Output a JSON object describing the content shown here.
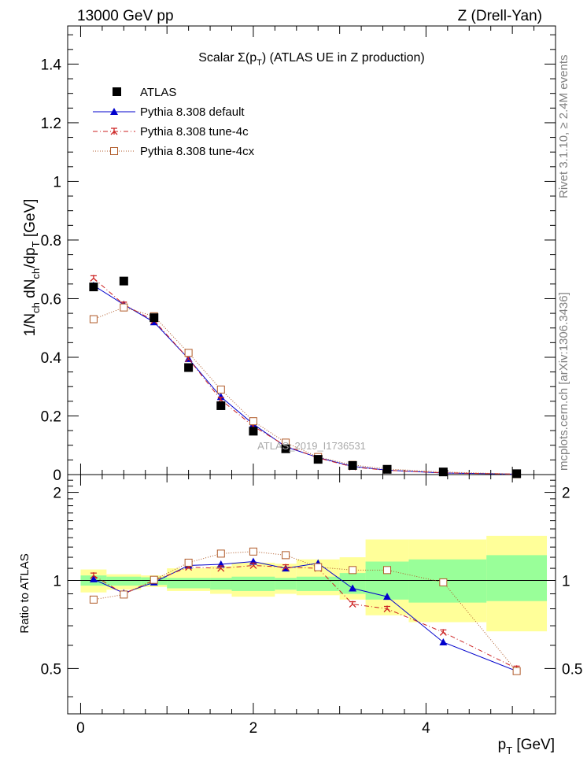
{
  "header": {
    "left": "13000 GeV pp",
    "right": "Z (Drell-Yan)"
  },
  "side_labels": {
    "rivet": "Rivet 3.1.10, ≥ 2.4M events",
    "mcplots": "mcplots.cern.ch [arXiv:1306.3436]"
  },
  "watermark": "ATLAS_2019_I1736531",
  "colors": {
    "atlas": "#000000",
    "default": "#0000cc",
    "tune4c": "#cc2222",
    "tune4cx": "#b05a28",
    "band_inner": "#99ff99",
    "band_outer": "#ffff99"
  },
  "chart_data": [
    {
      "type": "scatter",
      "title": "Scalar Σ(p_T) (ATLAS UE in Z production)",
      "title_parts": [
        "Scalar ",
        "Σ(p",
        "T",
        ") (ATLAS UE in Z production)"
      ],
      "ylabel": "1/N_ch dN_ch/dp_T [GeV]",
      "ylabel_parts": [
        "1/N",
        "ch",
        " dN",
        "ch",
        "/dp",
        "T",
        " [GeV]"
      ],
      "xlim": [
        -0.15,
        5.5
      ],
      "ylim": [
        0,
        1.53
      ],
      "yticks": [
        0,
        0.2,
        0.4,
        0.6,
        0.8,
        1,
        1.2,
        1.4
      ],
      "ytick_labels": [
        "0",
        "0.2",
        "0.4",
        "0.6",
        "0.8",
        "1",
        "1.2",
        "1.4"
      ],
      "x": [
        0.15,
        0.5,
        0.85,
        1.25,
        1.625,
        2.0,
        2.375,
        2.75,
        3.15,
        3.55,
        4.2,
        5.05
      ],
      "series": [
        {
          "name": "ATLAS",
          "values": [
            0.64,
            0.66,
            0.535,
            0.365,
            0.235,
            0.148,
            0.088,
            0.052,
            0.031,
            0.018,
            0.009,
            0.003
          ]
        },
        {
          "name": "Pythia 8.308 default",
          "values": [
            0.645,
            0.58,
            0.52,
            0.395,
            0.265,
            0.172,
            0.095,
            0.058,
            0.028,
            0.015,
            0.0055,
            0.0015
          ]
        },
        {
          "name": "Pythia 8.308 tune-4c",
          "values": [
            0.67,
            0.58,
            0.525,
            0.395,
            0.255,
            0.165,
            0.098,
            0.057,
            0.026,
            0.0145,
            0.006,
            0.0016
          ]
        },
        {
          "name": "Pythia 8.308 tune-4cx",
          "values": [
            0.53,
            0.57,
            0.54,
            0.415,
            0.29,
            0.182,
            0.109,
            0.06,
            0.033,
            0.019,
            0.009,
            0.0015
          ]
        }
      ],
      "legend_position": "top-left"
    },
    {
      "type": "scatter",
      "ylabel": "Ratio to ATLAS",
      "xlabel": "p_T [GeV]",
      "xlabel_parts": [
        "p",
        "T",
        " [GeV]"
      ],
      "xlim": [
        -0.15,
        5.5
      ],
      "ylim": [
        0.35,
        2.3
      ],
      "xticks": [
        0,
        2,
        4
      ],
      "xtick_labels": [
        "0",
        "2",
        "4"
      ],
      "yticks": [
        0.5,
        1,
        2
      ],
      "ytick_labels": [
        "0.5",
        "1",
        "2"
      ],
      "x": [
        0.15,
        0.5,
        0.85,
        1.25,
        1.625,
        2.0,
        2.375,
        2.75,
        3.15,
        3.55,
        4.2,
        5.05
      ],
      "bins": [
        [
          0.0,
          0.3
        ],
        [
          0.3,
          0.7
        ],
        [
          0.7,
          1.0
        ],
        [
          1.0,
          1.5
        ],
        [
          1.5,
          1.75
        ],
        [
          1.75,
          2.25
        ],
        [
          2.25,
          2.5
        ],
        [
          2.5,
          3.0
        ],
        [
          3.0,
          3.3
        ],
        [
          3.3,
          3.8
        ],
        [
          3.8,
          4.7
        ],
        [
          4.7,
          5.4
        ]
      ],
      "band_inner": [
        [
          0.96,
          1.04
        ],
        [
          0.96,
          1.03
        ],
        [
          0.965,
          1.025
        ],
        [
          0.94,
          1.02
        ],
        [
          0.93,
          1.02
        ],
        [
          0.92,
          1.03
        ],
        [
          0.93,
          1.02
        ],
        [
          0.92,
          1.03
        ],
        [
          0.9,
          1.06
        ],
        [
          0.86,
          1.16
        ],
        [
          0.84,
          1.18
        ],
        [
          0.85,
          1.22
        ]
      ],
      "band_outer": [
        [
          0.91,
          1.09
        ],
        [
          0.93,
          1.05
        ],
        [
          0.95,
          1.04
        ],
        [
          0.92,
          1.1
        ],
        [
          0.9,
          1.12
        ],
        [
          0.88,
          1.15
        ],
        [
          0.9,
          1.14
        ],
        [
          0.89,
          1.18
        ],
        [
          0.86,
          1.2
        ],
        [
          0.76,
          1.38
        ],
        [
          0.72,
          1.38
        ],
        [
          0.67,
          1.42
        ]
      ],
      "series": [
        {
          "name": "Pythia 8.308 default",
          "values": [
            1.01,
            0.905,
            0.985,
            1.125,
            1.135,
            1.16,
            1.1,
            1.145,
            0.94,
            0.88,
            0.615,
            0.49
          ]
        },
        {
          "name": "Pythia 8.308 tune-4c",
          "values": [
            1.04,
            0.9,
            1.0,
            1.11,
            1.1,
            1.125,
            1.11,
            1.1,
            0.83,
            0.8,
            0.665,
            0.5
          ]
        },
        {
          "name": "Pythia 8.308 tune-4cx",
          "values": [
            0.86,
            0.895,
            1.005,
            1.15,
            1.235,
            1.255,
            1.22,
            1.11,
            1.085,
            1.085,
            0.985,
            0.49
          ]
        }
      ]
    }
  ]
}
